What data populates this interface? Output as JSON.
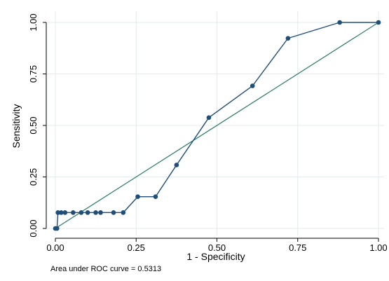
{
  "chart_data": {
    "type": "line",
    "xlabel": "1 - Specificity",
    "ylabel": "Sensitivity",
    "xlim": [
      0,
      1
    ],
    "ylim": [
      0,
      1
    ],
    "x_ticks": [
      "0.00",
      "0.25",
      "0.50",
      "0.75",
      "1.00"
    ],
    "y_ticks": [
      "0.00",
      "0.25",
      "0.50",
      "0.75",
      "1.00"
    ],
    "grid": true,
    "note": "Area under ROC curve = 0.5313",
    "series": [
      {
        "color": "#1f4e79",
        "marker": "circle",
        "points": [
          [
            0.0,
            0.0
          ],
          [
            0.005,
            0.0
          ],
          [
            0.008,
            0.077
          ],
          [
            0.018,
            0.077
          ],
          [
            0.03,
            0.077
          ],
          [
            0.055,
            0.077
          ],
          [
            0.08,
            0.077
          ],
          [
            0.1,
            0.077
          ],
          [
            0.125,
            0.077
          ],
          [
            0.14,
            0.077
          ],
          [
            0.18,
            0.077
          ],
          [
            0.21,
            0.077
          ],
          [
            0.255,
            0.154
          ],
          [
            0.31,
            0.154
          ],
          [
            0.375,
            0.308
          ],
          [
            0.475,
            0.538
          ],
          [
            0.61,
            0.692
          ],
          [
            0.72,
            0.923
          ],
          [
            0.88,
            1.0
          ],
          [
            1.0,
            1.0
          ]
        ]
      },
      {
        "color": "#2e7d6b",
        "marker": "none",
        "points": [
          [
            0,
            0
          ],
          [
            1,
            1
          ]
        ]
      }
    ]
  }
}
